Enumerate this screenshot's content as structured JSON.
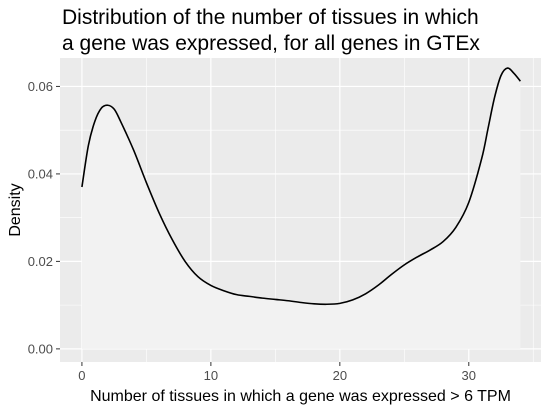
{
  "chart_data": {
    "type": "area",
    "title_lines": [
      "Distribution of the number of tissues in which",
      "a gene was expressed, for all genes in GTEx"
    ],
    "xlabel": "Number of tissues in which a gene was expressed > 6 TPM",
    "ylabel": "Density",
    "xlim": [
      -1.7,
      35.6
    ],
    "ylim": [
      -0.003,
      0.0665
    ],
    "x_ticks": [
      0,
      10,
      20,
      30
    ],
    "x_tick_labels": [
      "0",
      "10",
      "20",
      "30"
    ],
    "y_ticks": [
      0.0,
      0.02,
      0.04,
      0.06
    ],
    "y_tick_labels": [
      "0.00",
      "0.02",
      "0.04",
      "0.06"
    ],
    "grid": true,
    "legend": "none",
    "colors": {
      "panel": "#ebebeb",
      "grid": "#ffffff",
      "fill": "#f2f2f2",
      "line": "#000000"
    },
    "series": [
      {
        "x": [
          0,
          0.5,
          1,
          1.5,
          2,
          2.5,
          3,
          4,
          5,
          6,
          7,
          8,
          9,
          10,
          11,
          12,
          13,
          14,
          15,
          16,
          17,
          18,
          19,
          20,
          21,
          22,
          23,
          24,
          25,
          26,
          27,
          28,
          29,
          30,
          31,
          31.5,
          32,
          32.5,
          33,
          33.5,
          34
        ],
        "y": [
          0.037,
          0.0465,
          0.052,
          0.055,
          0.0557,
          0.0548,
          0.052,
          0.0455,
          0.038,
          0.031,
          0.025,
          0.02,
          0.0165,
          0.0145,
          0.0133,
          0.0124,
          0.012,
          0.0116,
          0.0113,
          0.011,
          0.0106,
          0.0103,
          0.0102,
          0.0104,
          0.0112,
          0.0126,
          0.0146,
          0.017,
          0.0192,
          0.021,
          0.0226,
          0.0245,
          0.0278,
          0.0335,
          0.0435,
          0.0505,
          0.0575,
          0.0625,
          0.0642,
          0.063,
          0.0612
        ]
      }
    ]
  }
}
